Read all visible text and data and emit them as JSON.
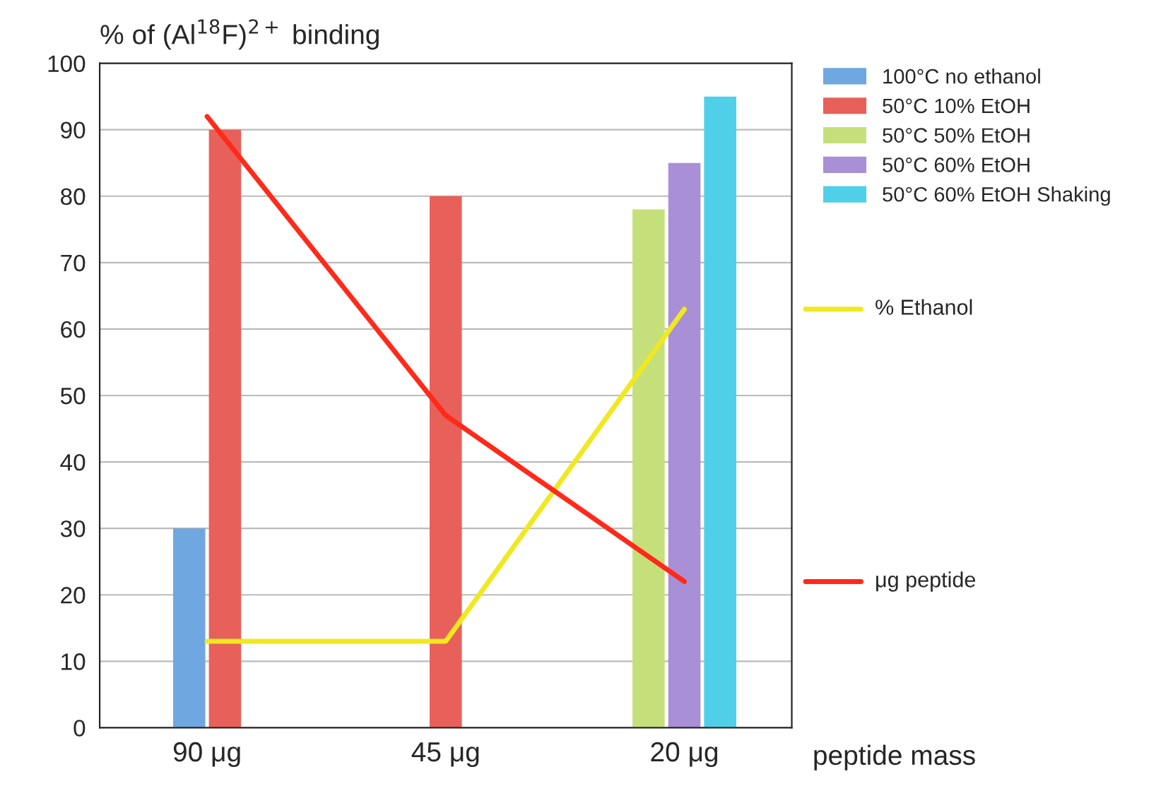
{
  "chart_data": {
    "type": "bar",
    "ylabel": "% of (Al$^{18}$F)$^{2+}$ binding",
    "xlabel": "peptide mass",
    "categories": [
      "90 μg",
      "45 μg",
      "20 μg"
    ],
    "series": [
      {
        "name": "100°C no ethanol",
        "color": "#6fa8e0",
        "values": [
          30,
          null,
          null
        ]
      },
      {
        "name": "50°C 10% EtOH",
        "color": "#e8605a",
        "values": [
          90,
          80,
          null
        ]
      },
      {
        "name": "50°C 50% EtOH",
        "color": "#c5e07a",
        "values": [
          null,
          null,
          78
        ]
      },
      {
        "name": "50°C 60% EtOH",
        "color": "#a98fd6",
        "values": [
          null,
          null,
          85
        ]
      },
      {
        "name": "50°C 60% EtOH Shaking",
        "color": "#4fd0e8",
        "values": [
          null,
          null,
          95
        ]
      },
      {
        "name": "% Ethanol",
        "type": "line",
        "color": "#f0e820",
        "values": [
          13,
          13,
          63
        ]
      },
      {
        "name": "μg peptide",
        "type": "line",
        "color": "#ff2a1a",
        "values": [
          92,
          47,
          22
        ]
      }
    ],
    "ylim": [
      0,
      100
    ],
    "yticks": [
      0,
      10,
      20,
      30,
      40,
      50,
      60,
      70,
      80,
      90,
      100
    ],
    "grid": "y",
    "legend": "top right"
  }
}
